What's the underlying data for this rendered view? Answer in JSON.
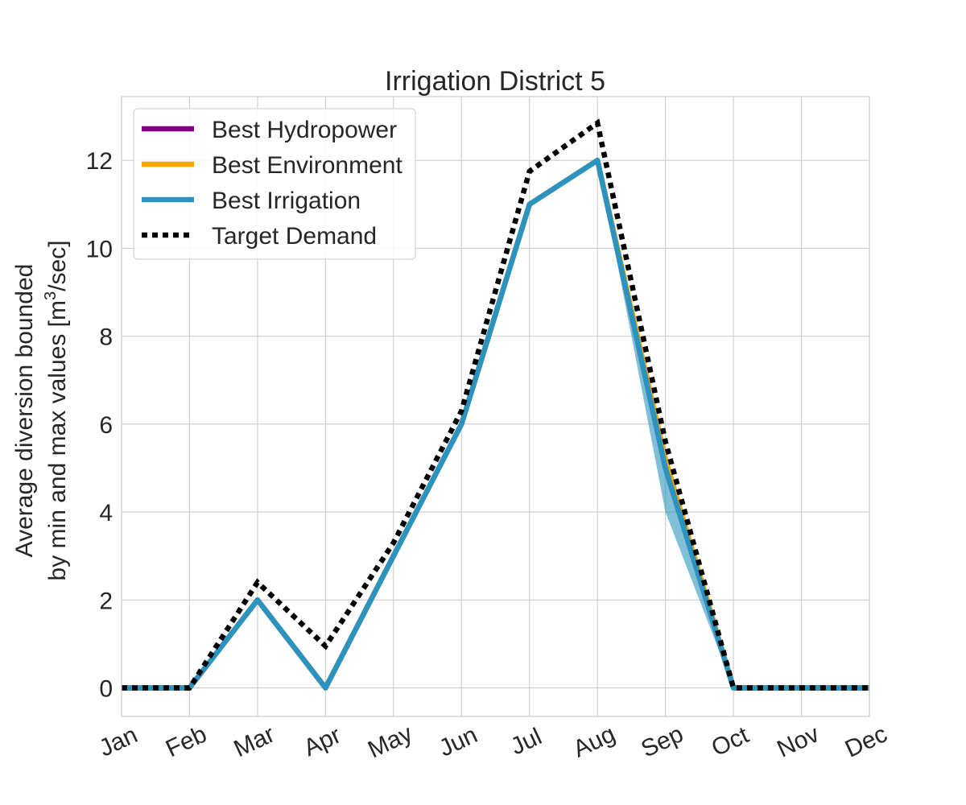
{
  "chart_data": {
    "type": "line",
    "title": "Irrigation District 5",
    "ylabel_line1": "Average diversion bounded",
    "ylabel_line2_prefix": "by min and max values [m",
    "ylabel_line2_sup": "3",
    "ylabel_line2_suffix": "/sec]",
    "x": [
      "Jan",
      "Feb",
      "Mar",
      "Apr",
      "May",
      "Jun",
      "Jul",
      "Aug",
      "Sep",
      "Oct",
      "Nov",
      "Dec"
    ],
    "ylim": [
      -0.65,
      13.45
    ],
    "yticks": [
      0,
      2,
      4,
      6,
      8,
      10,
      12
    ],
    "grid": true,
    "legend_position": "top-left",
    "series": [
      {
        "name": "Best Hydropower",
        "color": "#800080",
        "style": "solid",
        "values": [
          0,
          0,
          2,
          0,
          3,
          6,
          11,
          12,
          5,
          0,
          0,
          0
        ]
      },
      {
        "name": "Best Environment",
        "color": "#FFA500",
        "style": "solid",
        "values": [
          0,
          0,
          2,
          0,
          3,
          6,
          11,
          12,
          5.2,
          0,
          0,
          0
        ]
      },
      {
        "name": "Best Irrigation",
        "color": "#2B94BE",
        "style": "solid",
        "values": [
          0,
          0,
          2,
          0,
          3,
          6,
          11,
          12,
          5,
          0,
          0,
          0
        ],
        "min": [
          0,
          0,
          2,
          0,
          3,
          6,
          11,
          12,
          4.0,
          0,
          0,
          0
        ],
        "max": [
          0,
          0,
          2,
          0,
          3,
          6,
          11,
          12,
          5.2,
          0,
          0,
          0
        ]
      },
      {
        "name": "Target Demand",
        "color": "#000000",
        "style": "dotted",
        "values": [
          0,
          0,
          2.4,
          0.95,
          3.3,
          6.3,
          11.75,
          12.85,
          5.6,
          0,
          0,
          0
        ]
      }
    ]
  }
}
